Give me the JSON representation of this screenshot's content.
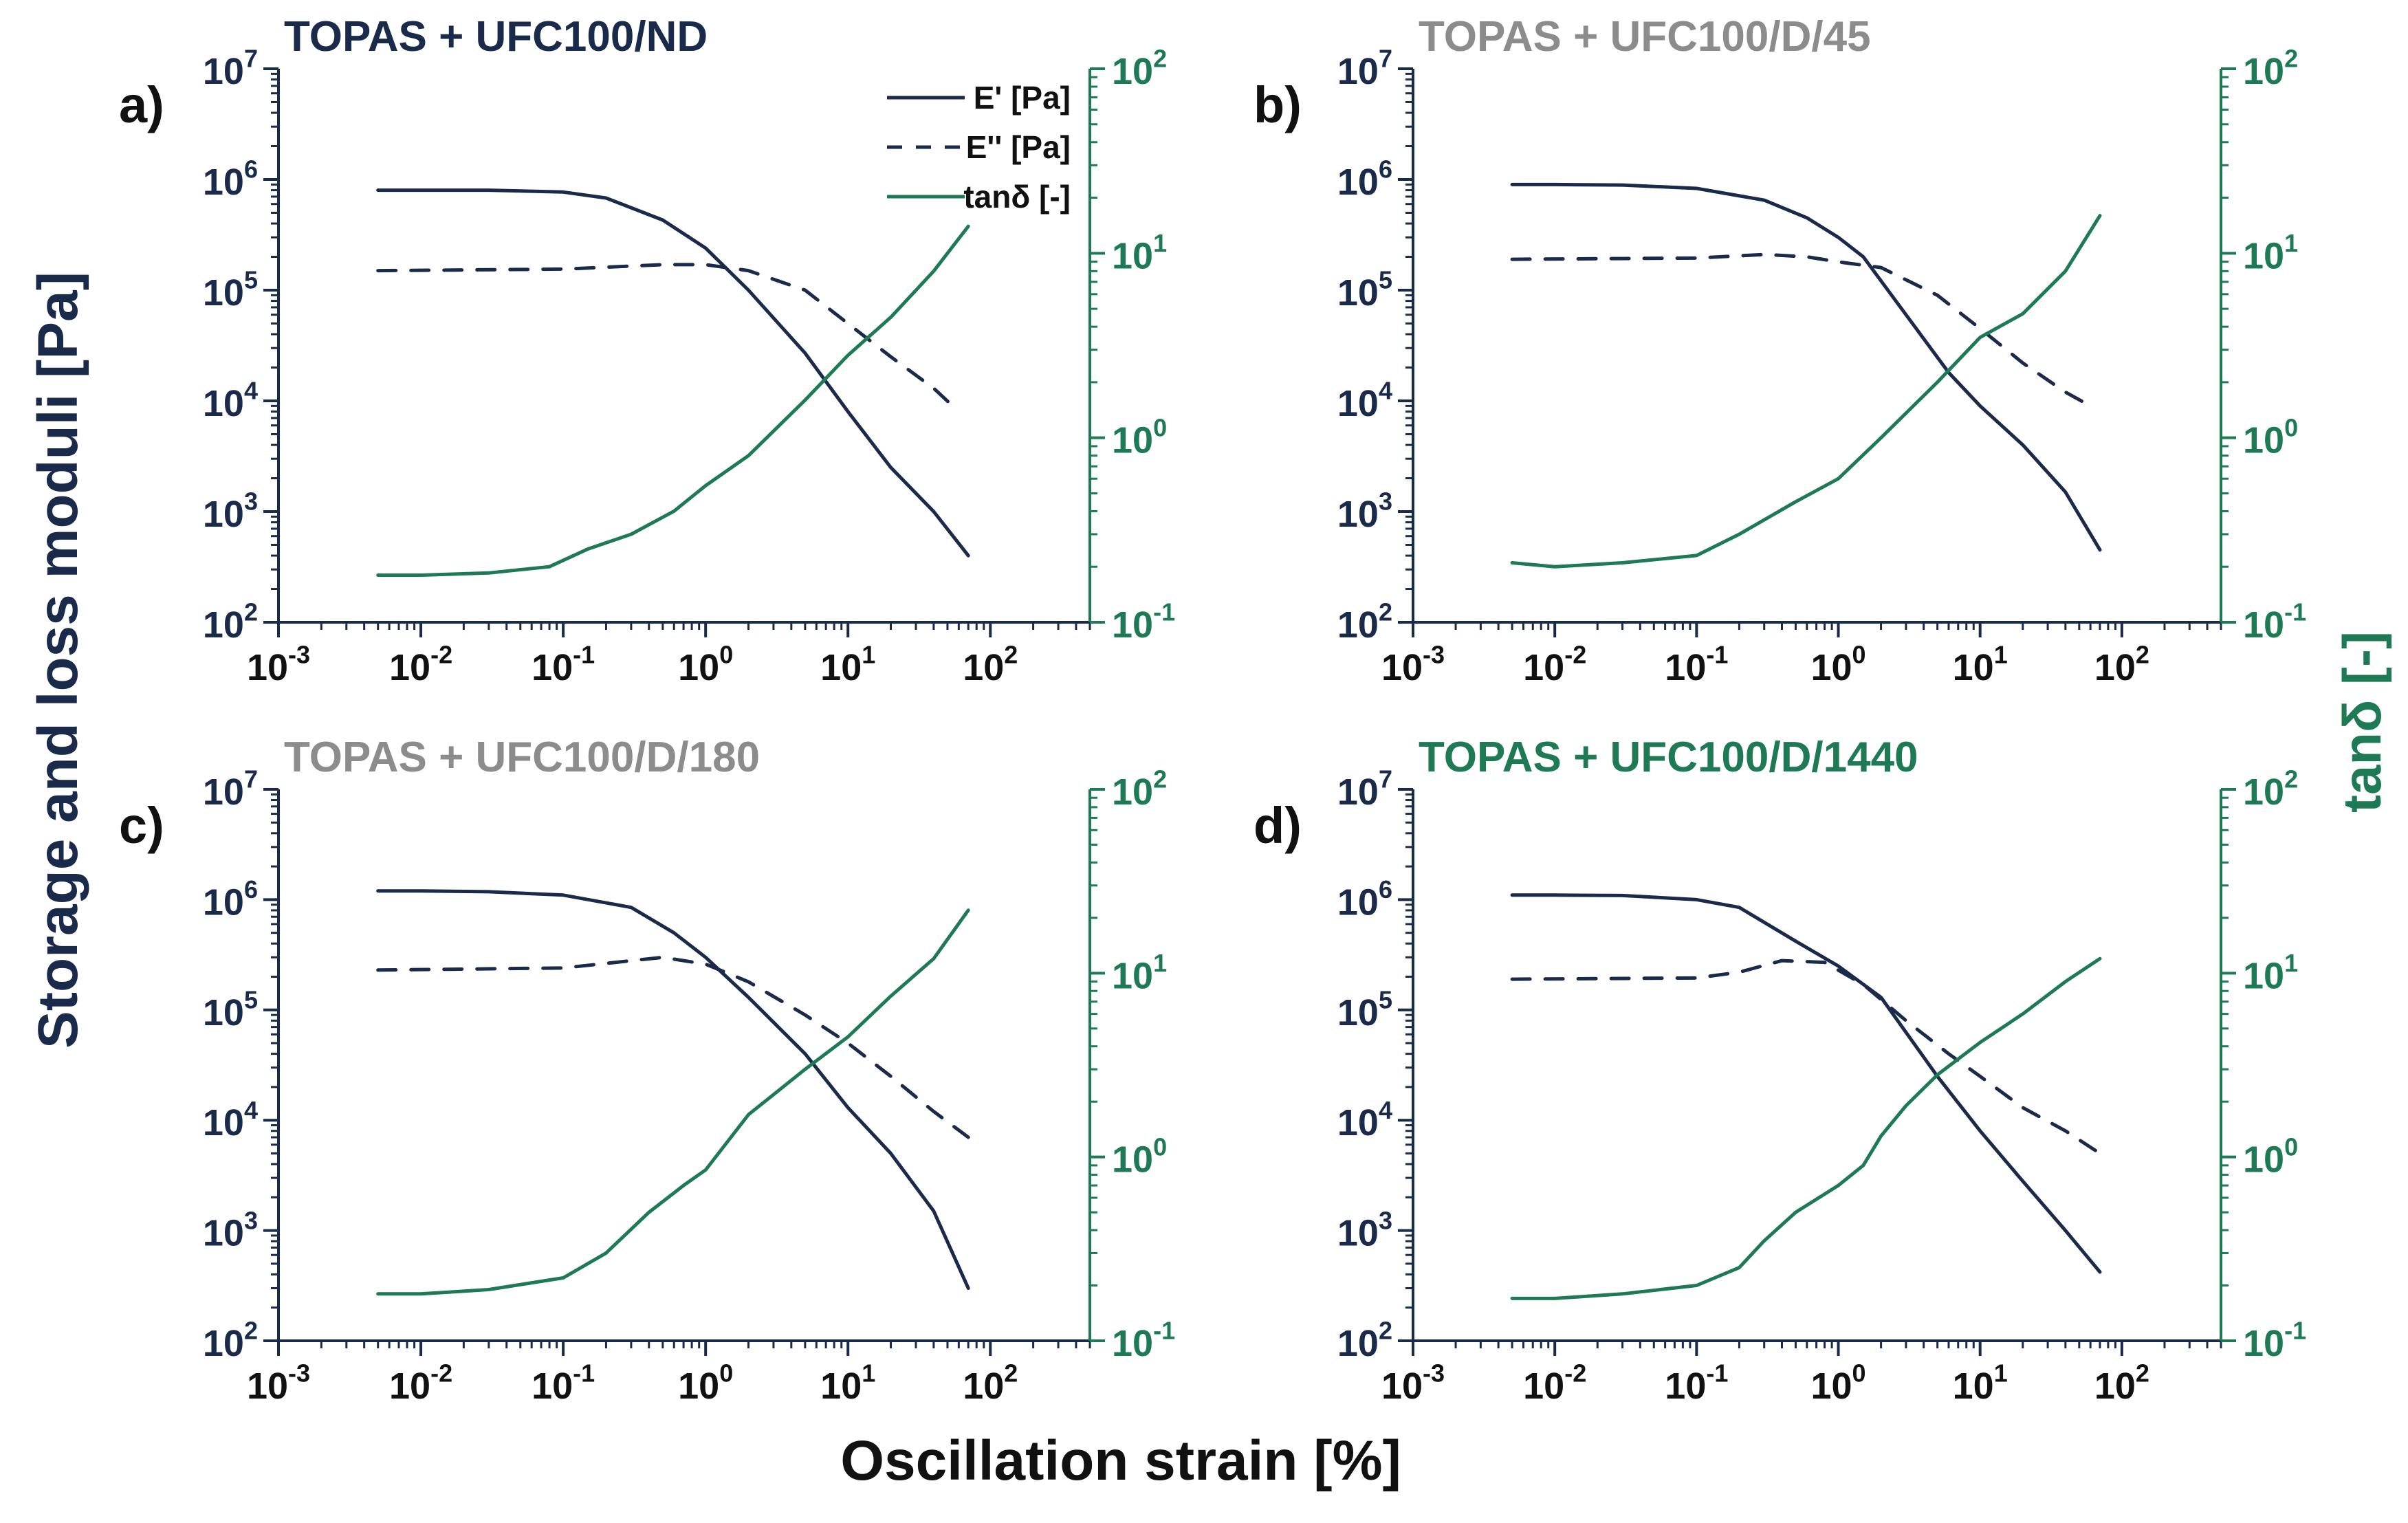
{
  "figure": {
    "ylabel_left": "Storage and loss moduli [Pa]",
    "ylabel_right": "tanδ [-]",
    "xlabel": "Oscillation strain [%]"
  },
  "legend": {
    "items": [
      {
        "label": "E' [Pa]",
        "style": "solid",
        "color": "#1a2a4a"
      },
      {
        "label": "E'' [Pa]",
        "style": "dashed",
        "color": "#1a2a4a"
      },
      {
        "label": "tanδ [-]",
        "style": "solid",
        "color": "#1e7a55"
      }
    ]
  },
  "colors": {
    "dark": "#1a2a4a",
    "green": "#1e7a55",
    "gray": "#8c8c8c",
    "axis_right": "#1e7a55"
  },
  "axis_ticks": {
    "x": [
      "10",
      "10",
      "10",
      "10",
      "10",
      "10"
    ],
    "x_exp": [
      "-3",
      "-2",
      "-1",
      "0",
      "1",
      "2"
    ],
    "y_left": [
      "10",
      "10",
      "10",
      "10",
      "10",
      "10"
    ],
    "y_left_exp": [
      "2",
      "3",
      "4",
      "5",
      "6",
      "7"
    ],
    "y_right": [
      "10",
      "10",
      "10",
      "10"
    ],
    "y_right_exp": [
      "-1",
      "0",
      "1",
      "2"
    ]
  },
  "chart_data": [
    {
      "type": "line",
      "panel_label": "a)",
      "title": "TOPAS + UFC100/ND",
      "title_color": "#1a2a4a",
      "xscale": "log",
      "xlim": [
        0.001,
        500
      ],
      "ylim_left": [
        100,
        10000000
      ],
      "ylim_right": [
        0.1,
        100
      ],
      "series": [
        {
          "name": "E' [Pa]",
          "axis": "left",
          "style": "solid",
          "x": [
            0.005,
            0.01,
            0.03,
            0.1,
            0.2,
            0.5,
            1,
            2,
            5,
            10,
            20,
            40,
            70
          ],
          "y": [
            800000,
            800000,
            800000,
            770000,
            680000,
            430000,
            240000,
            100000,
            27000,
            8000,
            2500,
            1000,
            400
          ]
        },
        {
          "name": "E'' [Pa]",
          "axis": "left",
          "style": "dashed",
          "x": [
            0.005,
            0.1,
            0.5,
            1,
            2,
            5,
            10,
            20,
            40,
            60
          ],
          "y": [
            150000,
            155000,
            170000,
            170000,
            150000,
            100000,
            50000,
            25000,
            13000,
            8000
          ]
        },
        {
          "name": "tanδ [-]",
          "axis": "right",
          "style": "solid",
          "x": [
            0.005,
            0.01,
            0.03,
            0.08,
            0.15,
            0.3,
            0.6,
            1,
            2,
            5,
            10,
            20,
            40,
            70
          ],
          "y": [
            0.18,
            0.18,
            0.185,
            0.2,
            0.25,
            0.3,
            0.4,
            0.55,
            0.8,
            1.6,
            2.8,
            4.5,
            8.0,
            14
          ]
        }
      ]
    },
    {
      "type": "line",
      "panel_label": "b)",
      "title": "TOPAS + UFC100/D/45",
      "title_color": "#8c8c8c",
      "xscale": "log",
      "xlim": [
        0.001,
        500
      ],
      "ylim_left": [
        100,
        10000000
      ],
      "ylim_right": [
        0.1,
        100
      ],
      "series": [
        {
          "name": "E' [Pa]",
          "axis": "left",
          "style": "solid",
          "x": [
            0.005,
            0.01,
            0.03,
            0.1,
            0.3,
            0.6,
            1,
            1.5,
            3,
            6,
            10,
            20,
            40,
            70
          ],
          "y": [
            900000,
            900000,
            890000,
            830000,
            650000,
            450000,
            300000,
            200000,
            60000,
            18000,
            9000,
            4000,
            1500,
            450
          ]
        },
        {
          "name": "E'' [Pa]",
          "axis": "left",
          "style": "dashed",
          "x": [
            0.005,
            0.1,
            0.3,
            0.6,
            1,
            2,
            5,
            10,
            20,
            40,
            60
          ],
          "y": [
            190000,
            195000,
            210000,
            200000,
            180000,
            160000,
            90000,
            45000,
            22000,
            12000,
            9000
          ]
        },
        {
          "name": "tanδ [-]",
          "axis": "right",
          "style": "solid",
          "x": [
            0.005,
            0.01,
            0.03,
            0.1,
            0.2,
            0.5,
            1,
            2,
            5,
            10,
            20,
            40,
            70
          ],
          "y": [
            0.21,
            0.2,
            0.21,
            0.23,
            0.3,
            0.45,
            0.6,
            1.0,
            2.0,
            3.5,
            4.7,
            8.0,
            16
          ]
        }
      ]
    },
    {
      "type": "line",
      "panel_label": "c)",
      "title": "TOPAS + UFC100/D/180",
      "title_color": "#8c8c8c",
      "xscale": "log",
      "xlim": [
        0.001,
        500
      ],
      "ylim_left": [
        100,
        10000000
      ],
      "ylim_right": [
        0.1,
        100
      ],
      "series": [
        {
          "name": "E' [Pa]",
          "axis": "left",
          "style": "solid",
          "x": [
            0.005,
            0.01,
            0.03,
            0.1,
            0.3,
            0.6,
            1,
            2,
            5,
            10,
            20,
            40,
            70
          ],
          "y": [
            1200000,
            1200000,
            1180000,
            1100000,
            850000,
            500000,
            300000,
            130000,
            40000,
            13000,
            5000,
            1500,
            300
          ]
        },
        {
          "name": "E'' [Pa]",
          "axis": "left",
          "style": "dashed",
          "x": [
            0.005,
            0.1,
            0.5,
            1,
            2,
            5,
            10,
            20,
            40,
            70
          ],
          "y": [
            230000,
            240000,
            300000,
            260000,
            180000,
            90000,
            50000,
            25000,
            12000,
            7000
          ]
        },
        {
          "name": "tanδ [-]",
          "axis": "right",
          "style": "solid",
          "x": [
            0.005,
            0.01,
            0.03,
            0.1,
            0.2,
            0.4,
            0.7,
            1,
            2,
            5,
            10,
            20,
            40,
            70
          ],
          "y": [
            0.18,
            0.18,
            0.19,
            0.22,
            0.3,
            0.5,
            0.7,
            0.85,
            1.7,
            3.0,
            4.5,
            7.5,
            12,
            22
          ]
        }
      ]
    },
    {
      "type": "line",
      "panel_label": "d)",
      "title": "TOPAS + UFC100/D/1440",
      "title_color": "#1e7a55",
      "xscale": "log",
      "xlim": [
        0.001,
        500
      ],
      "ylim_left": [
        100,
        10000000
      ],
      "ylim_right": [
        0.1,
        100
      ],
      "series": [
        {
          "name": "E' [Pa]",
          "axis": "left",
          "style": "solid",
          "x": [
            0.005,
            0.01,
            0.03,
            0.1,
            0.2,
            0.5,
            1,
            2,
            5,
            10,
            20,
            40,
            70
          ],
          "y": [
            1100000,
            1100000,
            1090000,
            1000000,
            850000,
            420000,
            250000,
            130000,
            25000,
            8000,
            2800,
            1000,
            420
          ]
        },
        {
          "name": "E'' [Pa]",
          "axis": "left",
          "style": "dashed",
          "x": [
            0.005,
            0.1,
            0.2,
            0.4,
            0.8,
            1.5,
            3,
            6,
            10,
            20,
            40,
            70
          ],
          "y": [
            190000,
            195000,
            220000,
            280000,
            270000,
            170000,
            80000,
            40000,
            25000,
            13000,
            8000,
            5000
          ]
        },
        {
          "name": "tanδ [-]",
          "axis": "right",
          "style": "solid",
          "x": [
            0.005,
            0.01,
            0.03,
            0.1,
            0.2,
            0.3,
            0.5,
            1,
            1.5,
            2,
            3,
            5,
            10,
            20,
            40,
            70
          ],
          "y": [
            0.17,
            0.17,
            0.18,
            0.2,
            0.25,
            0.35,
            0.5,
            0.7,
            0.9,
            1.3,
            1.9,
            2.8,
            4.2,
            6.0,
            9.0,
            12
          ]
        }
      ]
    }
  ]
}
